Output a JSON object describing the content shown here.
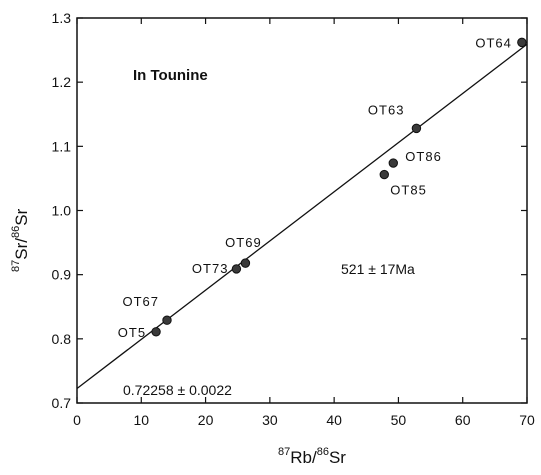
{
  "chart_data": {
    "type": "scatter",
    "title": "In Tounine",
    "xlabel": {
      "pre": "87",
      "base1": "Rb",
      "slash": "/",
      "pre2": "86",
      "base2": "Sr"
    },
    "ylabel": {
      "pre": "87",
      "base1": "Sr",
      "slash": "/",
      "pre2": "86",
      "base2": "Sr"
    },
    "xlim": [
      0,
      70
    ],
    "ylim": [
      0.7,
      1.3
    ],
    "xticks": [
      0,
      10,
      20,
      30,
      40,
      50,
      60,
      70
    ],
    "yticks": [
      0.7,
      0.8,
      0.9,
      1.0,
      1.1,
      1.2,
      1.3
    ],
    "ytick_labels": [
      "0.7",
      "0.8",
      "0.9",
      "1.0",
      "1.1",
      "1.2",
      "1.3"
    ],
    "points": [
      {
        "label": "OT5",
        "x": 12.3,
        "y": 0.811
      },
      {
        "label": "OT67",
        "x": 14.0,
        "y": 0.829
      },
      {
        "label": "OT73",
        "x": 24.8,
        "y": 0.909
      },
      {
        "label": "OT69",
        "x": 26.2,
        "y": 0.918
      },
      {
        "label": "OT85",
        "x": 47.8,
        "y": 1.056
      },
      {
        "label": "OT86",
        "x": 49.2,
        "y": 1.074
      },
      {
        "label": "OT63",
        "x": 52.8,
        "y": 1.128
      },
      {
        "label": "OT64",
        "x": 69.2,
        "y": 1.262
      }
    ],
    "regression": {
      "x": [
        0,
        70
      ],
      "y": [
        0.72258,
        1.2591
      ]
    },
    "annotations": {
      "age": "521 ± 17Ma",
      "intercept": "0.72258 ± 0.0022"
    }
  }
}
